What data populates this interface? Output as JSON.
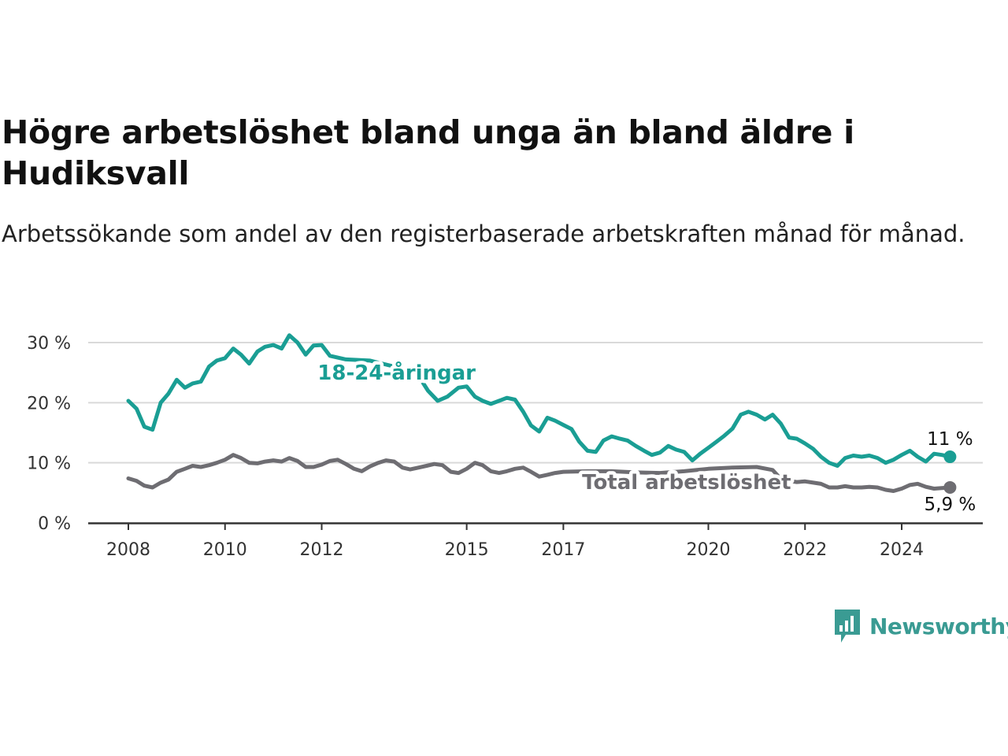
{
  "title": "Högre arbetslöshet bland unga än bland äldre i Hudiksvall",
  "subtitle": "Arbetssökande som andel av den registerbaserade arbetskraften månad för månad.",
  "brand": {
    "name": "Newsworthy",
    "color": "#3a9b93"
  },
  "chart_data": {
    "type": "line",
    "title": "Högre arbetslöshet bland unga än bland äldre i Hudiksvall",
    "subtitle": "Arbetssökande som andel av den registerbaserade arbetskraften månad för månad.",
    "xlabel": "",
    "ylabel": "",
    "x_ticks": [
      "2008",
      "2010",
      "2012",
      "2015",
      "2017",
      "2020",
      "2022",
      "2024"
    ],
    "y_ticks": [
      "0 %",
      "10 %",
      "20 %",
      "30 %"
    ],
    "y_tick_values": [
      0,
      10,
      20,
      30
    ],
    "ylim": [
      0,
      30
    ],
    "grid": true,
    "series": [
      {
        "name": "18-24-åringar",
        "color": "#1a9e94",
        "end_label": "11 %",
        "points": [
          [
            2008.0,
            20.3
          ],
          [
            2008.17,
            19.0
          ],
          [
            2008.33,
            16.0
          ],
          [
            2008.5,
            15.5
          ],
          [
            2008.67,
            20.0
          ],
          [
            2008.83,
            21.5
          ],
          [
            2009.0,
            23.8
          ],
          [
            2009.17,
            22.5
          ],
          [
            2009.33,
            23.2
          ],
          [
            2009.5,
            23.5
          ],
          [
            2009.67,
            26.0
          ],
          [
            2009.83,
            27.0
          ],
          [
            2010.0,
            27.4
          ],
          [
            2010.17,
            29.0
          ],
          [
            2010.33,
            28.0
          ],
          [
            2010.5,
            26.5
          ],
          [
            2010.67,
            28.5
          ],
          [
            2010.83,
            29.3
          ],
          [
            2011.0,
            29.6
          ],
          [
            2011.17,
            29.0
          ],
          [
            2011.33,
            31.2
          ],
          [
            2011.5,
            30.0
          ],
          [
            2011.67,
            28.0
          ],
          [
            2011.83,
            29.5
          ],
          [
            2012.0,
            29.6
          ],
          [
            2012.17,
            27.8
          ],
          [
            2012.5,
            27.2
          ],
          [
            2013.0,
            27.0
          ],
          [
            2013.5,
            26.0
          ],
          [
            2014.0,
            24.5
          ],
          [
            2014.2,
            22.0
          ],
          [
            2014.4,
            20.3
          ],
          [
            2014.6,
            21.0
          ],
          [
            2014.83,
            22.5
          ],
          [
            2015.0,
            22.7
          ],
          [
            2015.17,
            21.0
          ],
          [
            2015.33,
            20.3
          ],
          [
            2015.5,
            19.8
          ],
          [
            2015.67,
            20.3
          ],
          [
            2015.83,
            20.8
          ],
          [
            2016.0,
            20.5
          ],
          [
            2016.17,
            18.5
          ],
          [
            2016.33,
            16.2
          ],
          [
            2016.5,
            15.2
          ],
          [
            2016.67,
            17.5
          ],
          [
            2016.83,
            17.0
          ],
          [
            2017.0,
            16.3
          ],
          [
            2017.17,
            15.6
          ],
          [
            2017.33,
            13.5
          ],
          [
            2017.5,
            12.0
          ],
          [
            2017.67,
            11.8
          ],
          [
            2017.83,
            13.7
          ],
          [
            2018.0,
            14.4
          ],
          [
            2018.17,
            14.0
          ],
          [
            2018.33,
            13.7
          ],
          [
            2018.5,
            12.8
          ],
          [
            2018.67,
            12.0
          ],
          [
            2018.83,
            11.3
          ],
          [
            2019.0,
            11.7
          ],
          [
            2019.17,
            12.8
          ],
          [
            2019.33,
            12.2
          ],
          [
            2019.5,
            11.8
          ],
          [
            2019.67,
            10.4
          ],
          [
            2019.83,
            11.5
          ],
          [
            2020.0,
            12.5
          ],
          [
            2020.17,
            13.5
          ],
          [
            2020.33,
            14.5
          ],
          [
            2020.5,
            15.7
          ],
          [
            2020.67,
            18.0
          ],
          [
            2020.83,
            18.5
          ],
          [
            2021.0,
            18.0
          ],
          [
            2021.17,
            17.2
          ],
          [
            2021.33,
            18.0
          ],
          [
            2021.5,
            16.5
          ],
          [
            2021.67,
            14.2
          ],
          [
            2021.83,
            14.0
          ],
          [
            2022.0,
            13.2
          ],
          [
            2022.17,
            12.3
          ],
          [
            2022.33,
            11.0
          ],
          [
            2022.5,
            10.0
          ],
          [
            2022.67,
            9.5
          ],
          [
            2022.83,
            10.8
          ],
          [
            2023.0,
            11.2
          ],
          [
            2023.17,
            11.0
          ],
          [
            2023.33,
            11.2
          ],
          [
            2023.5,
            10.8
          ],
          [
            2023.67,
            10.0
          ],
          [
            2023.83,
            10.5
          ],
          [
            2024.0,
            11.3
          ],
          [
            2024.17,
            12.0
          ],
          [
            2024.33,
            11.0
          ],
          [
            2024.5,
            10.2
          ],
          [
            2024.67,
            11.5
          ],
          [
            2024.83,
            11.3
          ],
          [
            2025.0,
            11.0
          ]
        ]
      },
      {
        "name": "Total arbetslöshet",
        "color": "#6e6d72",
        "end_label": "5,9 %",
        "points": [
          [
            2008.0,
            7.4
          ],
          [
            2008.17,
            7.0
          ],
          [
            2008.33,
            6.2
          ],
          [
            2008.5,
            5.9
          ],
          [
            2008.67,
            6.7
          ],
          [
            2008.83,
            7.2
          ],
          [
            2009.0,
            8.5
          ],
          [
            2009.17,
            9.0
          ],
          [
            2009.33,
            9.5
          ],
          [
            2009.5,
            9.3
          ],
          [
            2009.67,
            9.6
          ],
          [
            2009.83,
            10.0
          ],
          [
            2010.0,
            10.5
          ],
          [
            2010.17,
            11.3
          ],
          [
            2010.33,
            10.8
          ],
          [
            2010.5,
            10.0
          ],
          [
            2010.67,
            9.9
          ],
          [
            2010.83,
            10.2
          ],
          [
            2011.0,
            10.4
          ],
          [
            2011.17,
            10.2
          ],
          [
            2011.33,
            10.8
          ],
          [
            2011.5,
            10.3
          ],
          [
            2011.67,
            9.3
          ],
          [
            2011.83,
            9.3
          ],
          [
            2012.0,
            9.7
          ],
          [
            2012.17,
            10.3
          ],
          [
            2012.33,
            10.5
          ],
          [
            2012.5,
            9.8
          ],
          [
            2012.67,
            9.0
          ],
          [
            2012.83,
            8.6
          ],
          [
            2013.0,
            9.4
          ],
          [
            2013.17,
            10.0
          ],
          [
            2013.33,
            10.4
          ],
          [
            2013.5,
            10.2
          ],
          [
            2013.67,
            9.2
          ],
          [
            2013.83,
            8.9
          ],
          [
            2014.0,
            9.2
          ],
          [
            2014.17,
            9.5
          ],
          [
            2014.33,
            9.8
          ],
          [
            2014.5,
            9.6
          ],
          [
            2014.67,
            8.5
          ],
          [
            2014.83,
            8.3
          ],
          [
            2015.0,
            9.0
          ],
          [
            2015.17,
            10.0
          ],
          [
            2015.33,
            9.6
          ],
          [
            2015.5,
            8.6
          ],
          [
            2015.67,
            8.3
          ],
          [
            2015.83,
            8.6
          ],
          [
            2016.0,
            9.0
          ],
          [
            2016.17,
            9.2
          ],
          [
            2016.33,
            8.5
          ],
          [
            2016.5,
            7.7
          ],
          [
            2016.67,
            8.0
          ],
          [
            2016.83,
            8.3
          ],
          [
            2017.0,
            8.5
          ],
          [
            2017.5,
            8.6
          ],
          [
            2018.0,
            8.6
          ],
          [
            2018.5,
            8.4
          ],
          [
            2019.0,
            8.3
          ],
          [
            2019.5,
            8.6
          ],
          [
            2020.0,
            9.0
          ],
          [
            2020.5,
            9.2
          ],
          [
            2021.0,
            9.3
          ],
          [
            2021.33,
            8.8
          ],
          [
            2021.5,
            7.3
          ],
          [
            2021.67,
            7.0
          ],
          [
            2021.83,
            6.8
          ],
          [
            2022.0,
            6.9
          ],
          [
            2022.17,
            6.7
          ],
          [
            2022.33,
            6.5
          ],
          [
            2022.5,
            5.9
          ],
          [
            2022.67,
            5.9
          ],
          [
            2022.83,
            6.1
          ],
          [
            2023.0,
            5.9
          ],
          [
            2023.17,
            5.9
          ],
          [
            2023.33,
            6.0
          ],
          [
            2023.5,
            5.9
          ],
          [
            2023.67,
            5.5
          ],
          [
            2023.83,
            5.3
          ],
          [
            2024.0,
            5.7
          ],
          [
            2024.17,
            6.3
          ],
          [
            2024.33,
            6.5
          ],
          [
            2024.5,
            6.0
          ],
          [
            2024.67,
            5.7
          ],
          [
            2024.83,
            5.8
          ],
          [
            2025.0,
            5.9
          ]
        ]
      }
    ]
  }
}
